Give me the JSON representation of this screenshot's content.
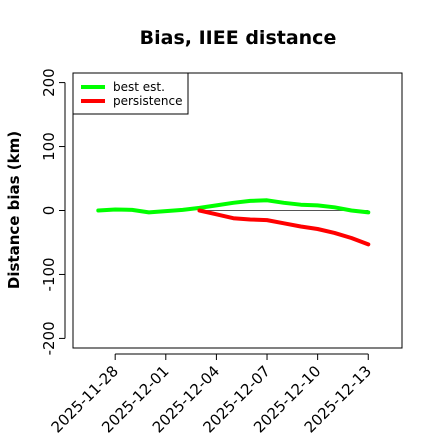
{
  "chart_data": {
    "type": "line",
    "title": "Bias, IIEE distance",
    "xlabel": "",
    "ylabel": "Distance bias (km)",
    "ylim": [
      -215,
      215
    ],
    "y_ticks": [
      -200,
      -100,
      0,
      100,
      200
    ],
    "x_ticks": [
      "2025-11-28",
      "2025-12-01",
      "2025-12-04",
      "2025-12-07",
      "2025-12-10",
      "2025-12-13"
    ],
    "reference_line": 0,
    "legend_position": "top-left",
    "series": [
      {
        "name": "best est.",
        "color": "#00ff00",
        "points": [
          [
            "2025-11-27",
            0
          ],
          [
            "2025-11-28",
            1.5
          ],
          [
            "2025-11-29",
            1
          ],
          [
            "2025-11-30",
            -3
          ],
          [
            "2025-12-01",
            -1
          ],
          [
            "2025-12-02",
            1
          ],
          [
            "2025-12-03",
            4
          ],
          [
            "2025-12-04",
            8
          ],
          [
            "2025-12-05",
            12
          ],
          [
            "2025-12-06",
            15
          ],
          [
            "2025-12-07",
            16
          ],
          [
            "2025-12-08",
            12
          ],
          [
            "2025-12-09",
            9
          ],
          [
            "2025-12-10",
            8
          ],
          [
            "2025-12-11",
            5
          ],
          [
            "2025-12-12",
            0
          ],
          [
            "2025-12-13",
            -3
          ]
        ]
      },
      {
        "name": "persistence",
        "color": "#ff0000",
        "points": [
          [
            "2025-12-03",
            0
          ],
          [
            "2025-12-04",
            -6
          ],
          [
            "2025-12-05",
            -12
          ],
          [
            "2025-12-06",
            -14
          ],
          [
            "2025-12-07",
            -15
          ],
          [
            "2025-12-08",
            -20
          ],
          [
            "2025-12-09",
            -25
          ],
          [
            "2025-12-10",
            -29
          ],
          [
            "2025-12-11",
            -35
          ],
          [
            "2025-12-12",
            -43
          ],
          [
            "2025-12-13",
            -53
          ]
        ]
      }
    ]
  }
}
